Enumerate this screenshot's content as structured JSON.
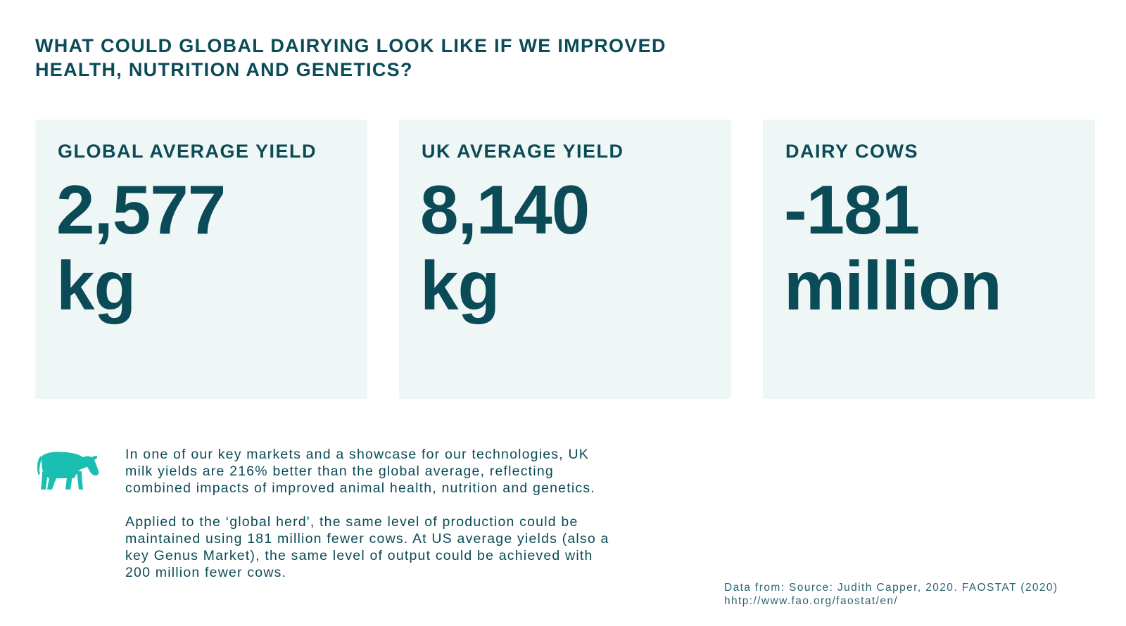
{
  "heading": {
    "line1": "WHAT COULD GLOBAL DAIRYING LOOK LIKE IF WE IMPROVED",
    "line2": "HEALTH, NUTRITION AND GENETICS?"
  },
  "cards": [
    {
      "label": "GLOBAL AVERAGE YIELD",
      "value": "2,577",
      "unit": "kg"
    },
    {
      "label": "UK AVERAGE YIELD",
      "value": "8,140",
      "unit": "kg"
    },
    {
      "label": "DAIRY COWS",
      "value": "-181",
      "unit": "million"
    }
  ],
  "body": {
    "paragraph1": "In one of our key markets and a showcase for our technologies, UK milk yields are 216% better than the global average, reflecting combined impacts of improved animal health, nutrition and genetics.",
    "paragraph2": "Applied to the ‘global herd', the same level of production could be maintained using 181 million fewer cows. At US average yields (also a key Genus Market), the same level of output could be achieved with 200 million fewer cows."
  },
  "source": {
    "line1": "Data from: Source: Judith Capper, 2020. FAOSTAT (2020)",
    "line2": "hhtp://www.fao.org/faostat/en/"
  },
  "icons": {
    "cow": "cow-icon"
  },
  "colors": {
    "primary_text": "#0b4b57",
    "card_background": "#eff7f6",
    "icon_accent": "#19bfb1"
  }
}
